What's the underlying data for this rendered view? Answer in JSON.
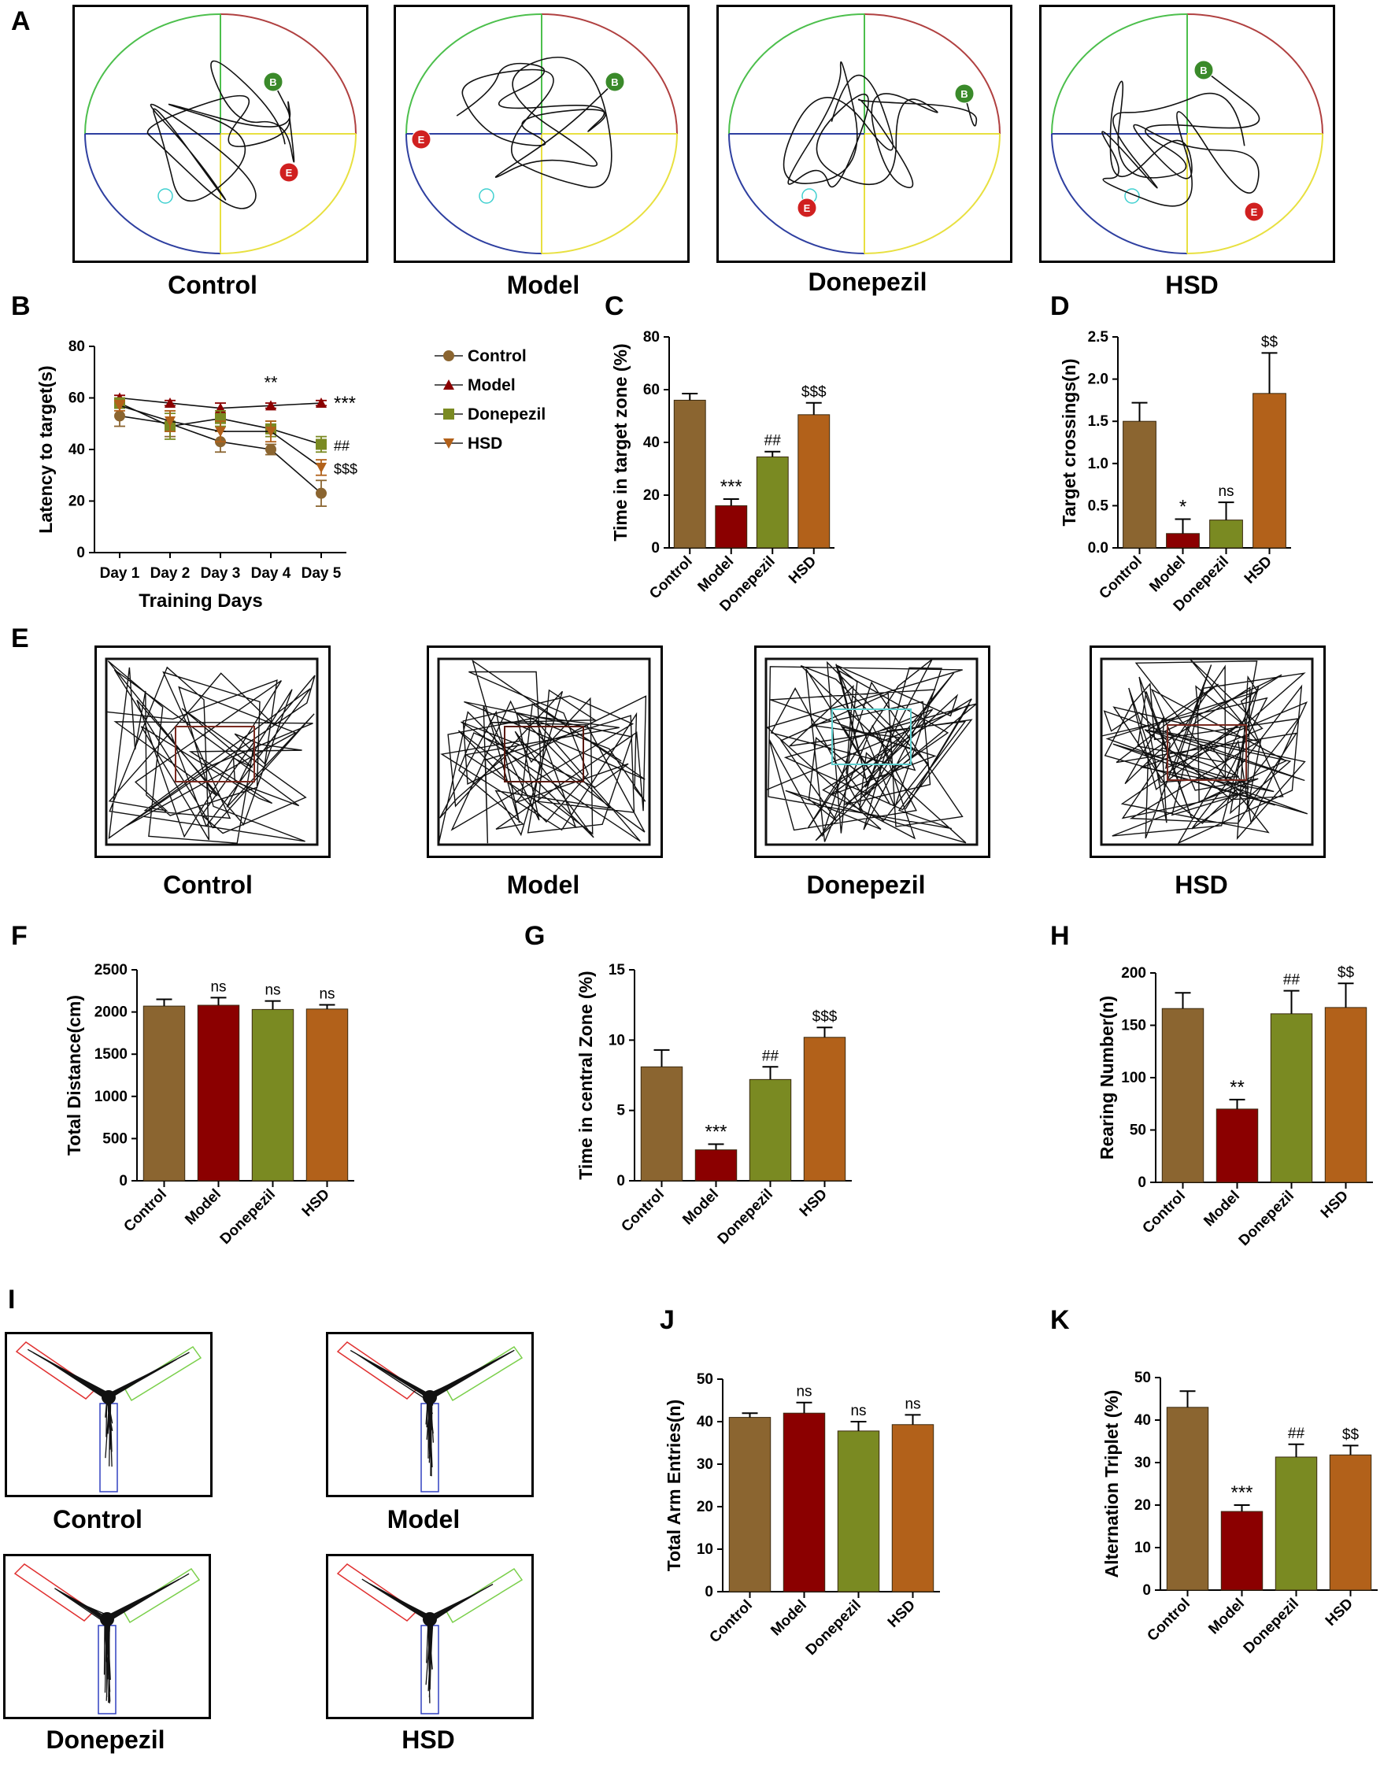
{
  "colors": {
    "control": "#8B6530",
    "model": "#8B0000",
    "donepezil": "#7A8A22",
    "hsd": "#B2611A",
    "axis": "#000000",
    "pool_green": "#4CBF4C",
    "pool_red": "#B04040",
    "pool_blue": "#2E3FA0",
    "pool_yellow": "#E8E040"
  },
  "panels": {
    "A": {
      "letter": "A",
      "labels": [
        "Control",
        "Model",
        "Donepezil",
        "HSD"
      ],
      "marker_start": "B",
      "marker_end": "E"
    },
    "E": {
      "letter": "E",
      "labels": [
        "Control",
        "Model",
        "Donepezil",
        "HSD"
      ]
    },
    "I": {
      "letter": "I",
      "labels": [
        "Control",
        "Model",
        "Donepezil",
        "HSD"
      ]
    }
  },
  "chart_data": [
    {
      "id": "B",
      "letter": "B",
      "type": "line",
      "title": "",
      "xlabel": "Training Days",
      "ylabel": "Latency to target(s)",
      "x": [
        "Day 1",
        "Day 2",
        "Day 3",
        "Day 4",
        "Day 5"
      ],
      "ylim": [
        0,
        80
      ],
      "yticks": [
        0,
        20,
        40,
        60,
        80
      ],
      "series": [
        {
          "name": "Control",
          "values": [
            53,
            50,
            43,
            40,
            23
          ],
          "errors": [
            4,
            5,
            4,
            2,
            5
          ],
          "marker": "circle",
          "color_key": "control"
        },
        {
          "name": "Model",
          "values": [
            60,
            58,
            56,
            57,
            58
          ],
          "errors": [
            1,
            1,
            2,
            1,
            1
          ],
          "marker": "triangle-up",
          "color_key": "model"
        },
        {
          "name": "Donepezil",
          "values": [
            58,
            49,
            52,
            48,
            42
          ],
          "errors": [
            2,
            5,
            3,
            3,
            3
          ],
          "marker": "square",
          "color_key": "donepezil"
        },
        {
          "name": "HSD",
          "values": [
            57,
            51,
            47,
            47,
            33
          ],
          "errors": [
            2,
            4,
            4,
            4,
            3
          ],
          "marker": "triangle-down",
          "color_key": "hsd"
        }
      ],
      "annotations": [
        {
          "text": "**",
          "x": "Day 4",
          "y": 63
        },
        {
          "text": "***",
          "x": "Day 5",
          "y": 58
        },
        {
          "text": "##",
          "x": "Day 5",
          "y": 42
        },
        {
          "text": "$$$",
          "x": "Day 5",
          "y": 33
        }
      ],
      "legend": [
        "Control",
        "Model",
        "Donepezil",
        "HSD"
      ]
    },
    {
      "id": "C",
      "letter": "C",
      "type": "bar",
      "ylabel": "Time in target zone (%)",
      "categories": [
        "Control",
        "Model",
        "Donepezil",
        "HSD"
      ],
      "values": [
        56,
        16,
        34.5,
        50.5
      ],
      "errors": [
        2.5,
        2.5,
        2,
        4.5
      ],
      "annotations": [
        "",
        "***",
        "##",
        "$$$"
      ],
      "ylim": [
        0,
        80
      ],
      "yticks": [
        0,
        20,
        40,
        60,
        80
      ],
      "tick_labels": [
        "0",
        "20",
        "40",
        "60",
        "80"
      ]
    },
    {
      "id": "D",
      "letter": "D",
      "type": "bar",
      "ylabel": "Target crossings(n)",
      "categories": [
        "Control",
        "Model",
        "Donepezil",
        "HSD"
      ],
      "values": [
        1.5,
        0.17,
        0.33,
        1.83
      ],
      "errors": [
        0.22,
        0.17,
        0.21,
        0.48
      ],
      "annotations": [
        "",
        "*",
        "ns",
        "$$"
      ],
      "ylim": [
        0,
        2.5
      ],
      "yticks": [
        0,
        0.5,
        1.0,
        1.5,
        2.0,
        2.5
      ],
      "tick_labels": [
        "0.0",
        "0.5",
        "1.0",
        "1.5",
        "2.0",
        "2.5"
      ]
    },
    {
      "id": "F",
      "letter": "F",
      "type": "bar",
      "ylabel": "Total Distance(cm)",
      "categories": [
        "Control",
        "Model",
        "Donepezil",
        "HSD"
      ],
      "values": [
        2070,
        2080,
        2030,
        2035
      ],
      "errors": [
        80,
        90,
        100,
        50
      ],
      "annotations": [
        "",
        "ns",
        "ns",
        "ns"
      ],
      "ylim": [
        0,
        2500
      ],
      "yticks": [
        0,
        500,
        1000,
        1500,
        2000,
        2500
      ],
      "tick_labels": [
        "0",
        "500",
        "1000",
        "1500",
        "2000",
        "2500"
      ]
    },
    {
      "id": "G",
      "letter": "G",
      "type": "bar",
      "ylabel": "Time in central Zone (%)",
      "categories": [
        "Control",
        "Model",
        "Donepezil",
        "HSD"
      ],
      "values": [
        8.1,
        2.2,
        7.2,
        10.2
      ],
      "errors": [
        1.2,
        0.4,
        0.9,
        0.7
      ],
      "annotations": [
        "",
        "***",
        "##",
        "$$$"
      ],
      "ylim": [
        0,
        15
      ],
      "yticks": [
        0,
        5,
        10,
        15
      ],
      "tick_labels": [
        "0",
        "5",
        "10",
        "15"
      ]
    },
    {
      "id": "H",
      "letter": "H",
      "type": "bar",
      "ylabel": "Rearing Number(n)",
      "categories": [
        "Control",
        "Model",
        "Donepezil",
        "HSD"
      ],
      "values": [
        166,
        70,
        161,
        167
      ],
      "errors": [
        15,
        9,
        22,
        23
      ],
      "annotations": [
        "",
        "**",
        "##",
        "$$"
      ],
      "ylim": [
        0,
        200
      ],
      "yticks": [
        0,
        50,
        100,
        150,
        200
      ],
      "tick_labels": [
        "0",
        "50",
        "100",
        "150",
        "200"
      ]
    },
    {
      "id": "J",
      "letter": "J",
      "type": "bar",
      "ylabel": "Total Arm Entries(n)",
      "categories": [
        "Control",
        "Model",
        "Donepezil",
        "HSD"
      ],
      "values": [
        41,
        42,
        37.8,
        39.3
      ],
      "errors": [
        1,
        2.5,
        2.2,
        2.3
      ],
      "annotations": [
        "",
        "ns",
        "ns",
        "ns"
      ],
      "ylim": [
        0,
        50
      ],
      "yticks": [
        0,
        10,
        20,
        30,
        40,
        50
      ],
      "tick_labels": [
        "0",
        "10",
        "20",
        "30",
        "40",
        "50"
      ]
    },
    {
      "id": "K",
      "letter": "K",
      "type": "bar",
      "ylabel": "Alternation Triplet (%)",
      "categories": [
        "Control",
        "Model",
        "Donepezil",
        "HSD"
      ],
      "values": [
        43,
        18.5,
        31.3,
        31.8
      ],
      "errors": [
        3.8,
        1.5,
        3,
        2.2
      ],
      "annotations": [
        "",
        "***",
        "##",
        "$$"
      ],
      "ylim": [
        0,
        50
      ],
      "yticks": [
        0,
        10,
        20,
        30,
        40,
        50
      ],
      "tick_labels": [
        "0",
        "10",
        "20",
        "30",
        "40",
        "50"
      ]
    }
  ]
}
